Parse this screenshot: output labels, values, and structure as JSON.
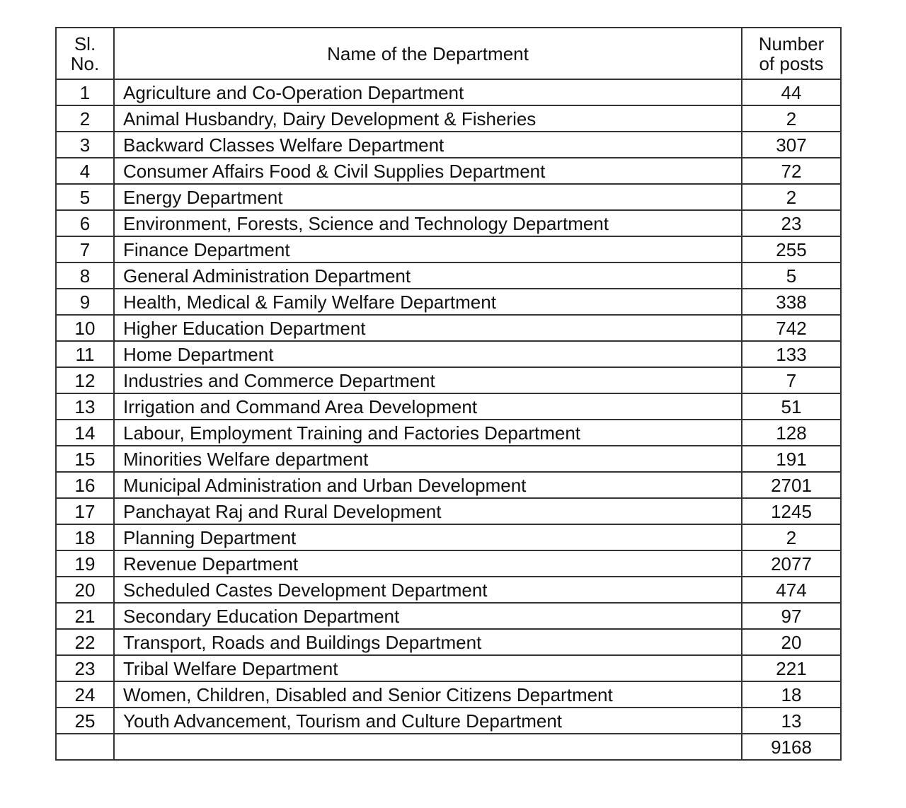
{
  "table": {
    "header": [
      "Sl. No.",
      "Name of the Department",
      "Number of posts"
    ],
    "rows": [
      [
        1,
        "Agriculture and Co-Operation Department",
        44
      ],
      [
        2,
        "Animal Husbandry, Dairy Development & Fisheries",
        2
      ],
      [
        3,
        "Backward Classes Welfare Department",
        307
      ],
      [
        4,
        "Consumer Affairs Food & Civil Supplies Department",
        72
      ],
      [
        5,
        "Energy Department",
        2
      ],
      [
        6,
        "Environment, Forests, Science and Technology Department",
        23
      ],
      [
        7,
        "Finance Department",
        255
      ],
      [
        8,
        "General Administration Department",
        5
      ],
      [
        9,
        "Health, Medical & Family Welfare Department",
        338
      ],
      [
        10,
        "Higher Education Department",
        742
      ],
      [
        11,
        "Home Department",
        133
      ],
      [
        12,
        "Industries and Commerce Department",
        7
      ],
      [
        13,
        "Irrigation and Command Area Development",
        51
      ],
      [
        14,
        "Labour, Employment Training and Factories Department",
        128
      ],
      [
        15,
        "Minorities Welfare department",
        191
      ],
      [
        16,
        "Municipal Administration and Urban Development",
        2701
      ],
      [
        17,
        "Panchayat Raj and Rural Development",
        1245
      ],
      [
        18,
        "Planning Department",
        2
      ],
      [
        19,
        "Revenue Department",
        2077
      ],
      [
        20,
        "Scheduled Castes Development Department",
        474
      ],
      [
        21,
        "Secondary Education Department",
        97
      ],
      [
        22,
        "Transport, Roads and Buildings Department",
        20
      ],
      [
        23,
        "Tribal Welfare Department",
        221
      ],
      [
        24,
        "Women, Children, Disabled and Senior Citizens Department",
        18
      ],
      [
        25,
        "Youth Advancement, Tourism and Culture Department",
        13
      ]
    ],
    "total": 9168
  }
}
